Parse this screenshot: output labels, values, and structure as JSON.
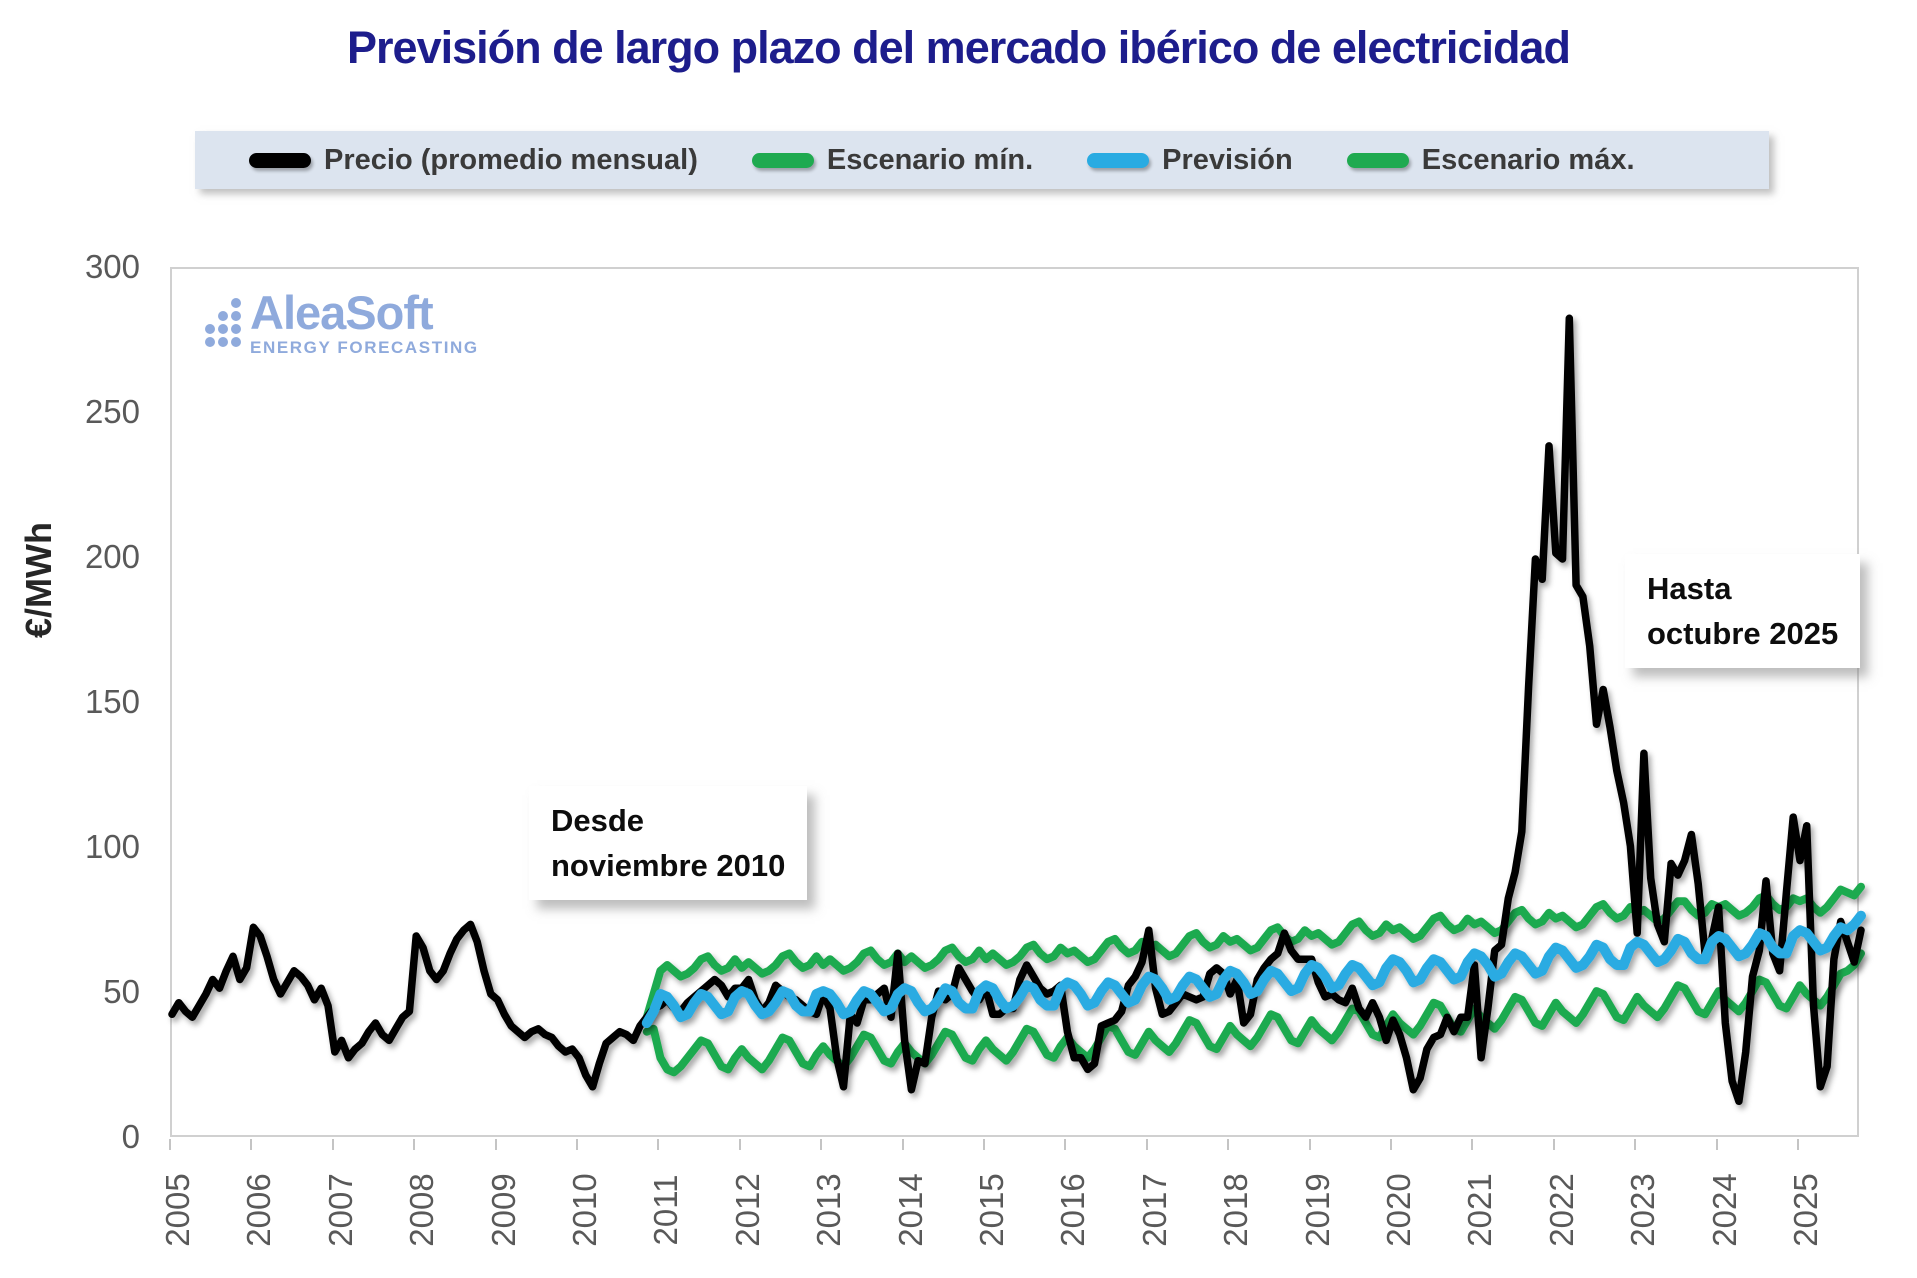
{
  "title": "Previsión de largo plazo del mercado ibérico de electricidad",
  "legend": {
    "items": [
      {
        "label": "Precio (promedio mensual)",
        "color": "#000000"
      },
      {
        "label": "Escenario mín.",
        "color": "#1faa50"
      },
      {
        "label": "Previsión",
        "color": "#29abe2"
      },
      {
        "label": "Escenario máx.",
        "color": "#1faa50"
      }
    ],
    "background": "#dce4ef"
  },
  "watermark": {
    "brand": "AleaSoft",
    "tagline": "ENERGY FORECASTING",
    "color": "#8faadc"
  },
  "annotations": {
    "start": {
      "line1": "Desde",
      "line2": "noviembre 2010"
    },
    "end": {
      "line1": "Hasta",
      "line2": "octubre 2025"
    }
  },
  "y_axis": {
    "label": "€/MWh",
    "ticks": [
      0,
      50,
      100,
      150,
      200,
      250,
      300
    ],
    "range": [
      0,
      300
    ]
  },
  "x_axis": {
    "ticks": [
      2005,
      2006,
      2007,
      2008,
      2009,
      2010,
      2011,
      2012,
      2013,
      2014,
      2015,
      2016,
      2017,
      2018,
      2019,
      2020,
      2021,
      2022,
      2023,
      2024,
      2025
    ]
  },
  "chart_data": {
    "type": "line",
    "title": "Previsión de largo plazo del mercado ibérico de electricidad",
    "xlabel": "",
    "ylabel": "€/MWh",
    "ylim": [
      0,
      300
    ],
    "x_domain_decimal_years": [
      2005.0,
      2025.75
    ],
    "grid": false,
    "legend_position": "top",
    "note": "monthly resolution; values in EUR/MWh estimated from plot",
    "series": [
      {
        "name": "Precio (promedio mensual)",
        "color": "#000000",
        "start_decimal_year": 2005.0,
        "values": [
          43,
          47,
          44,
          42,
          46,
          50,
          55,
          52,
          58,
          63,
          55,
          59,
          73,
          70,
          63,
          55,
          50,
          54,
          58,
          56,
          53,
          48,
          52,
          46,
          30,
          34,
          28,
          31,
          33,
          37,
          40,
          36,
          34,
          38,
          42,
          44,
          70,
          66,
          58,
          55,
          58,
          64,
          69,
          72,
          74,
          68,
          58,
          50,
          48,
          43,
          39,
          37,
          35,
          37,
          38,
          36,
          35,
          32,
          30,
          31,
          28,
          22,
          18,
          26,
          33,
          35,
          37,
          36,
          34,
          39,
          42,
          45,
          46,
          48,
          45,
          44,
          47,
          49,
          51,
          53,
          55,
          53,
          49,
          52,
          52,
          55,
          48,
          44,
          47,
          53,
          51,
          49,
          48,
          46,
          44,
          43,
          50,
          45,
          28,
          18,
          43,
          40,
          48,
          48,
          50,
          52,
          42,
          64,
          34,
          17,
          27,
          26,
          42,
          51,
          48,
          50,
          59,
          55,
          51,
          48,
          52,
          43,
          43,
          45,
          45,
          55,
          60,
          56,
          52,
          50,
          51,
          53,
          37,
          28,
          28,
          24,
          26,
          39,
          40,
          41,
          44,
          53,
          56,
          61,
          72,
          52,
          43,
          44,
          47,
          50,
          49,
          48,
          49,
          57,
          59,
          57,
          50,
          55,
          40,
          43,
          55,
          59,
          62,
          64,
          71,
          65,
          62,
          62,
          62,
          54,
          49,
          50,
          48,
          47,
          52,
          45,
          42,
          47,
          42,
          34,
          41,
          36,
          28,
          17,
          21,
          31,
          35,
          36,
          42,
          37,
          42,
          42,
          60,
          28,
          45,
          65,
          67,
          83,
          92,
          106,
          156,
          200,
          193,
          239,
          202,
          200,
          283,
          191,
          187,
          170,
          143,
          155,
          142,
          127,
          116,
          101,
          71,
          133,
          90,
          74,
          68,
          95,
          91,
          96,
          105,
          88,
          64,
          69,
          80,
          40,
          20,
          13,
          30,
          56,
          65,
          89,
          64,
          58,
          85,
          111,
          96,
          108,
          46,
          18,
          25,
          62,
          75,
          68,
          61,
          72
        ]
      },
      {
        "name": "Escenario mín.",
        "color": "#1faa50",
        "start_decimal_year": 2010.8333,
        "values": [
          37,
          38,
          28,
          24,
          23,
          25,
          28,
          31,
          34,
          33,
          29,
          25,
          24,
          28,
          31,
          28,
          26,
          24,
          27,
          31,
          35,
          34,
          30,
          26,
          25,
          29,
          32,
          29,
          27,
          25,
          28,
          32,
          36,
          35,
          31,
          27,
          26,
          30,
          33,
          30,
          28,
          26,
          29,
          33,
          37,
          36,
          32,
          28,
          27,
          31,
          34,
          31,
          29,
          27,
          30,
          34,
          38,
          37,
          33,
          29,
          28,
          32,
          35,
          32,
          30,
          28,
          31,
          35,
          39,
          38,
          34,
          30,
          29,
          33,
          37,
          34,
          32,
          30,
          33,
          37,
          41,
          40,
          36,
          32,
          31,
          35,
          39,
          36,
          34,
          32,
          35,
          39,
          43,
          42,
          38,
          34,
          33,
          37,
          41,
          38,
          36,
          34,
          37,
          41,
          45,
          44,
          40,
          36,
          35,
          39,
          43,
          40,
          38,
          36,
          39,
          43,
          47,
          46,
          42,
          38,
          37,
          41,
          45,
          42,
          40,
          38,
          41,
          45,
          49,
          48,
          44,
          40,
          39,
          43,
          47,
          44,
          42,
          40,
          43,
          47,
          51,
          50,
          46,
          42,
          41,
          45,
          49,
          46,
          44,
          42,
          45,
          49,
          53,
          52,
          48,
          44,
          43,
          47,
          51,
          48,
          46,
          44,
          47,
          51,
          55,
          54,
          50,
          46,
          45,
          49,
          53,
          50,
          48,
          46,
          49,
          53,
          57,
          58,
          60,
          64
        ]
      },
      {
        "name": "Previsión",
        "color": "#29abe2",
        "start_decimal_year": 2010.8333,
        "values": [
          40,
          44,
          50,
          49,
          46,
          42,
          43,
          47,
          50,
          49,
          46,
          43,
          44,
          49,
          51,
          50,
          46,
          43,
          44,
          47,
          51,
          50,
          46,
          44,
          44,
          50,
          51,
          50,
          47,
          43,
          44,
          48,
          51,
          50,
          47,
          44,
          45,
          50,
          52,
          51,
          47,
          44,
          45,
          48,
          52,
          51,
          47,
          45,
          45,
          51,
          53,
          52,
          48,
          45,
          46,
          49,
          53,
          52,
          48,
          46,
          46,
          52,
          54,
          53,
          50,
          46,
          47,
          51,
          54,
          53,
          50,
          47,
          48,
          53,
          56,
          55,
          52,
          48,
          49,
          53,
          56,
          55,
          52,
          49,
          50,
          55,
          58,
          57,
          54,
          50,
          51,
          55,
          58,
          57,
          54,
          51,
          52,
          57,
          60,
          59,
          56,
          52,
          53,
          57,
          60,
          59,
          56,
          53,
          54,
          59,
          62,
          61,
          58,
          54,
          55,
          59,
          62,
          61,
          58,
          55,
          56,
          61,
          64,
          63,
          60,
          56,
          57,
          61,
          64,
          63,
          60,
          57,
          58,
          63,
          66,
          65,
          62,
          59,
          60,
          63,
          67,
          66,
          62,
          60,
          60,
          66,
          68,
          67,
          64,
          61,
          62,
          65,
          69,
          68,
          64,
          62,
          62,
          68,
          70,
          69,
          66,
          63,
          64,
          67,
          71,
          70,
          66,
          64,
          64,
          70,
          72,
          71,
          68,
          65,
          66,
          70,
          73,
          72,
          74,
          77
        ]
      },
      {
        "name": "Escenario máx.",
        "color": "#1faa50",
        "start_decimal_year": 2010.8333,
        "values": [
          42,
          50,
          58,
          60,
          58,
          56,
          57,
          59,
          62,
          63,
          60,
          58,
          59,
          62,
          59,
          61,
          59,
          57,
          58,
          60,
          63,
          64,
          61,
          59,
          60,
          63,
          60,
          62,
          60,
          58,
          59,
          61,
          64,
          65,
          62,
          60,
          61,
          64,
          61,
          63,
          61,
          59,
          60,
          62,
          65,
          66,
          63,
          61,
          62,
          65,
          62,
          64,
          62,
          60,
          61,
          63,
          66,
          67,
          64,
          62,
          63,
          66,
          64,
          65,
          63,
          61,
          62,
          65,
          68,
          69,
          66,
          64,
          65,
          68,
          66,
          67,
          65,
          63,
          64,
          67,
          70,
          71,
          68,
          66,
          67,
          70,
          68,
          69,
          67,
          65,
          66,
          69,
          72,
          73,
          70,
          68,
          69,
          72,
          70,
          71,
          69,
          67,
          68,
          71,
          74,
          75,
          72,
          70,
          71,
          74,
          72,
          73,
          71,
          69,
          70,
          73,
          76,
          77,
          74,
          72,
          73,
          76,
          74,
          75,
          73,
          71,
          72,
          75,
          78,
          79,
          76,
          74,
          75,
          78,
          76,
          77,
          75,
          73,
          74,
          77,
          80,
          81,
          78,
          76,
          77,
          80,
          78,
          79,
          77,
          75,
          76,
          79,
          82,
          82,
          79,
          77,
          78,
          81,
          80,
          81,
          79,
          77,
          78,
          80,
          83,
          84,
          81,
          79,
          80,
          83,
          82,
          83,
          80,
          78,
          80,
          83,
          86,
          85,
          84,
          87
        ]
      }
    ]
  }
}
